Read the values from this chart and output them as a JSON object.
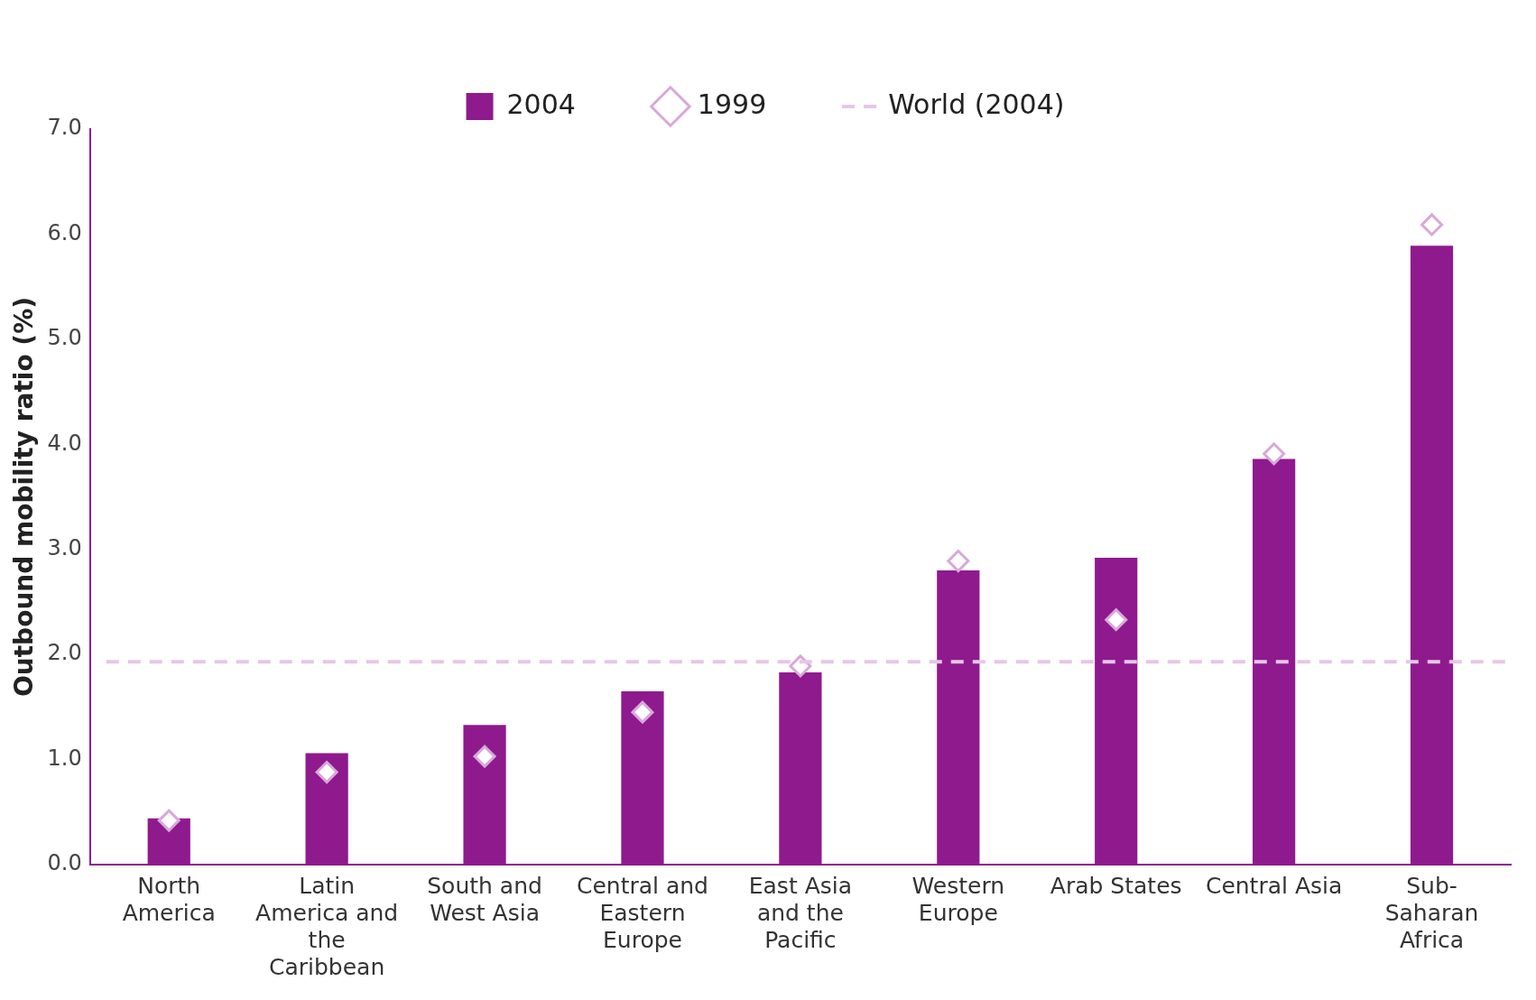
{
  "chart_data": {
    "type": "bar",
    "ylabel": "Outbound mobility ratio (%)",
    "categories": [
      "North America",
      "Latin America and the Caribbean",
      "South and West Asia",
      "Central and Eastern Europe",
      "East Asia and the Pacific",
      "Western Europe",
      "Arab States",
      "Central Asia",
      "Sub-Saharan Africa"
    ],
    "series": [
      {
        "name": "2004",
        "color": "#8e1a8e",
        "values": [
          0.44,
          1.06,
          1.33,
          1.65,
          1.83,
          2.8,
          2.92,
          3.86,
          5.89
        ]
      },
      {
        "name": "1999",
        "type": "scatter",
        "color": "#d8a8d8",
        "marker": "diamond",
        "values": [
          0.42,
          0.88,
          1.03,
          1.45,
          1.89,
          2.89,
          2.33,
          3.91,
          6.09
        ]
      }
    ],
    "ref_lines": [
      {
        "axis": "y",
        "value": 1.93,
        "label": "World (2004)",
        "color": "#e6c6e6",
        "line_style": "dashed"
      }
    ],
    "ylim": [
      0,
      7
    ],
    "yticks": [
      {
        "value": 0,
        "label": "0.0"
      },
      {
        "value": 1,
        "label": "1.0"
      },
      {
        "value": 2,
        "label": "2.0"
      },
      {
        "value": 3,
        "label": "3.0"
      },
      {
        "value": 4,
        "label": "4.0"
      },
      {
        "value": 5,
        "label": "5.0"
      },
      {
        "value": 6,
        "label": "6.0"
      },
      {
        "value": 7,
        "label": "7.0"
      }
    ],
    "grid": false,
    "legend": "top"
  }
}
